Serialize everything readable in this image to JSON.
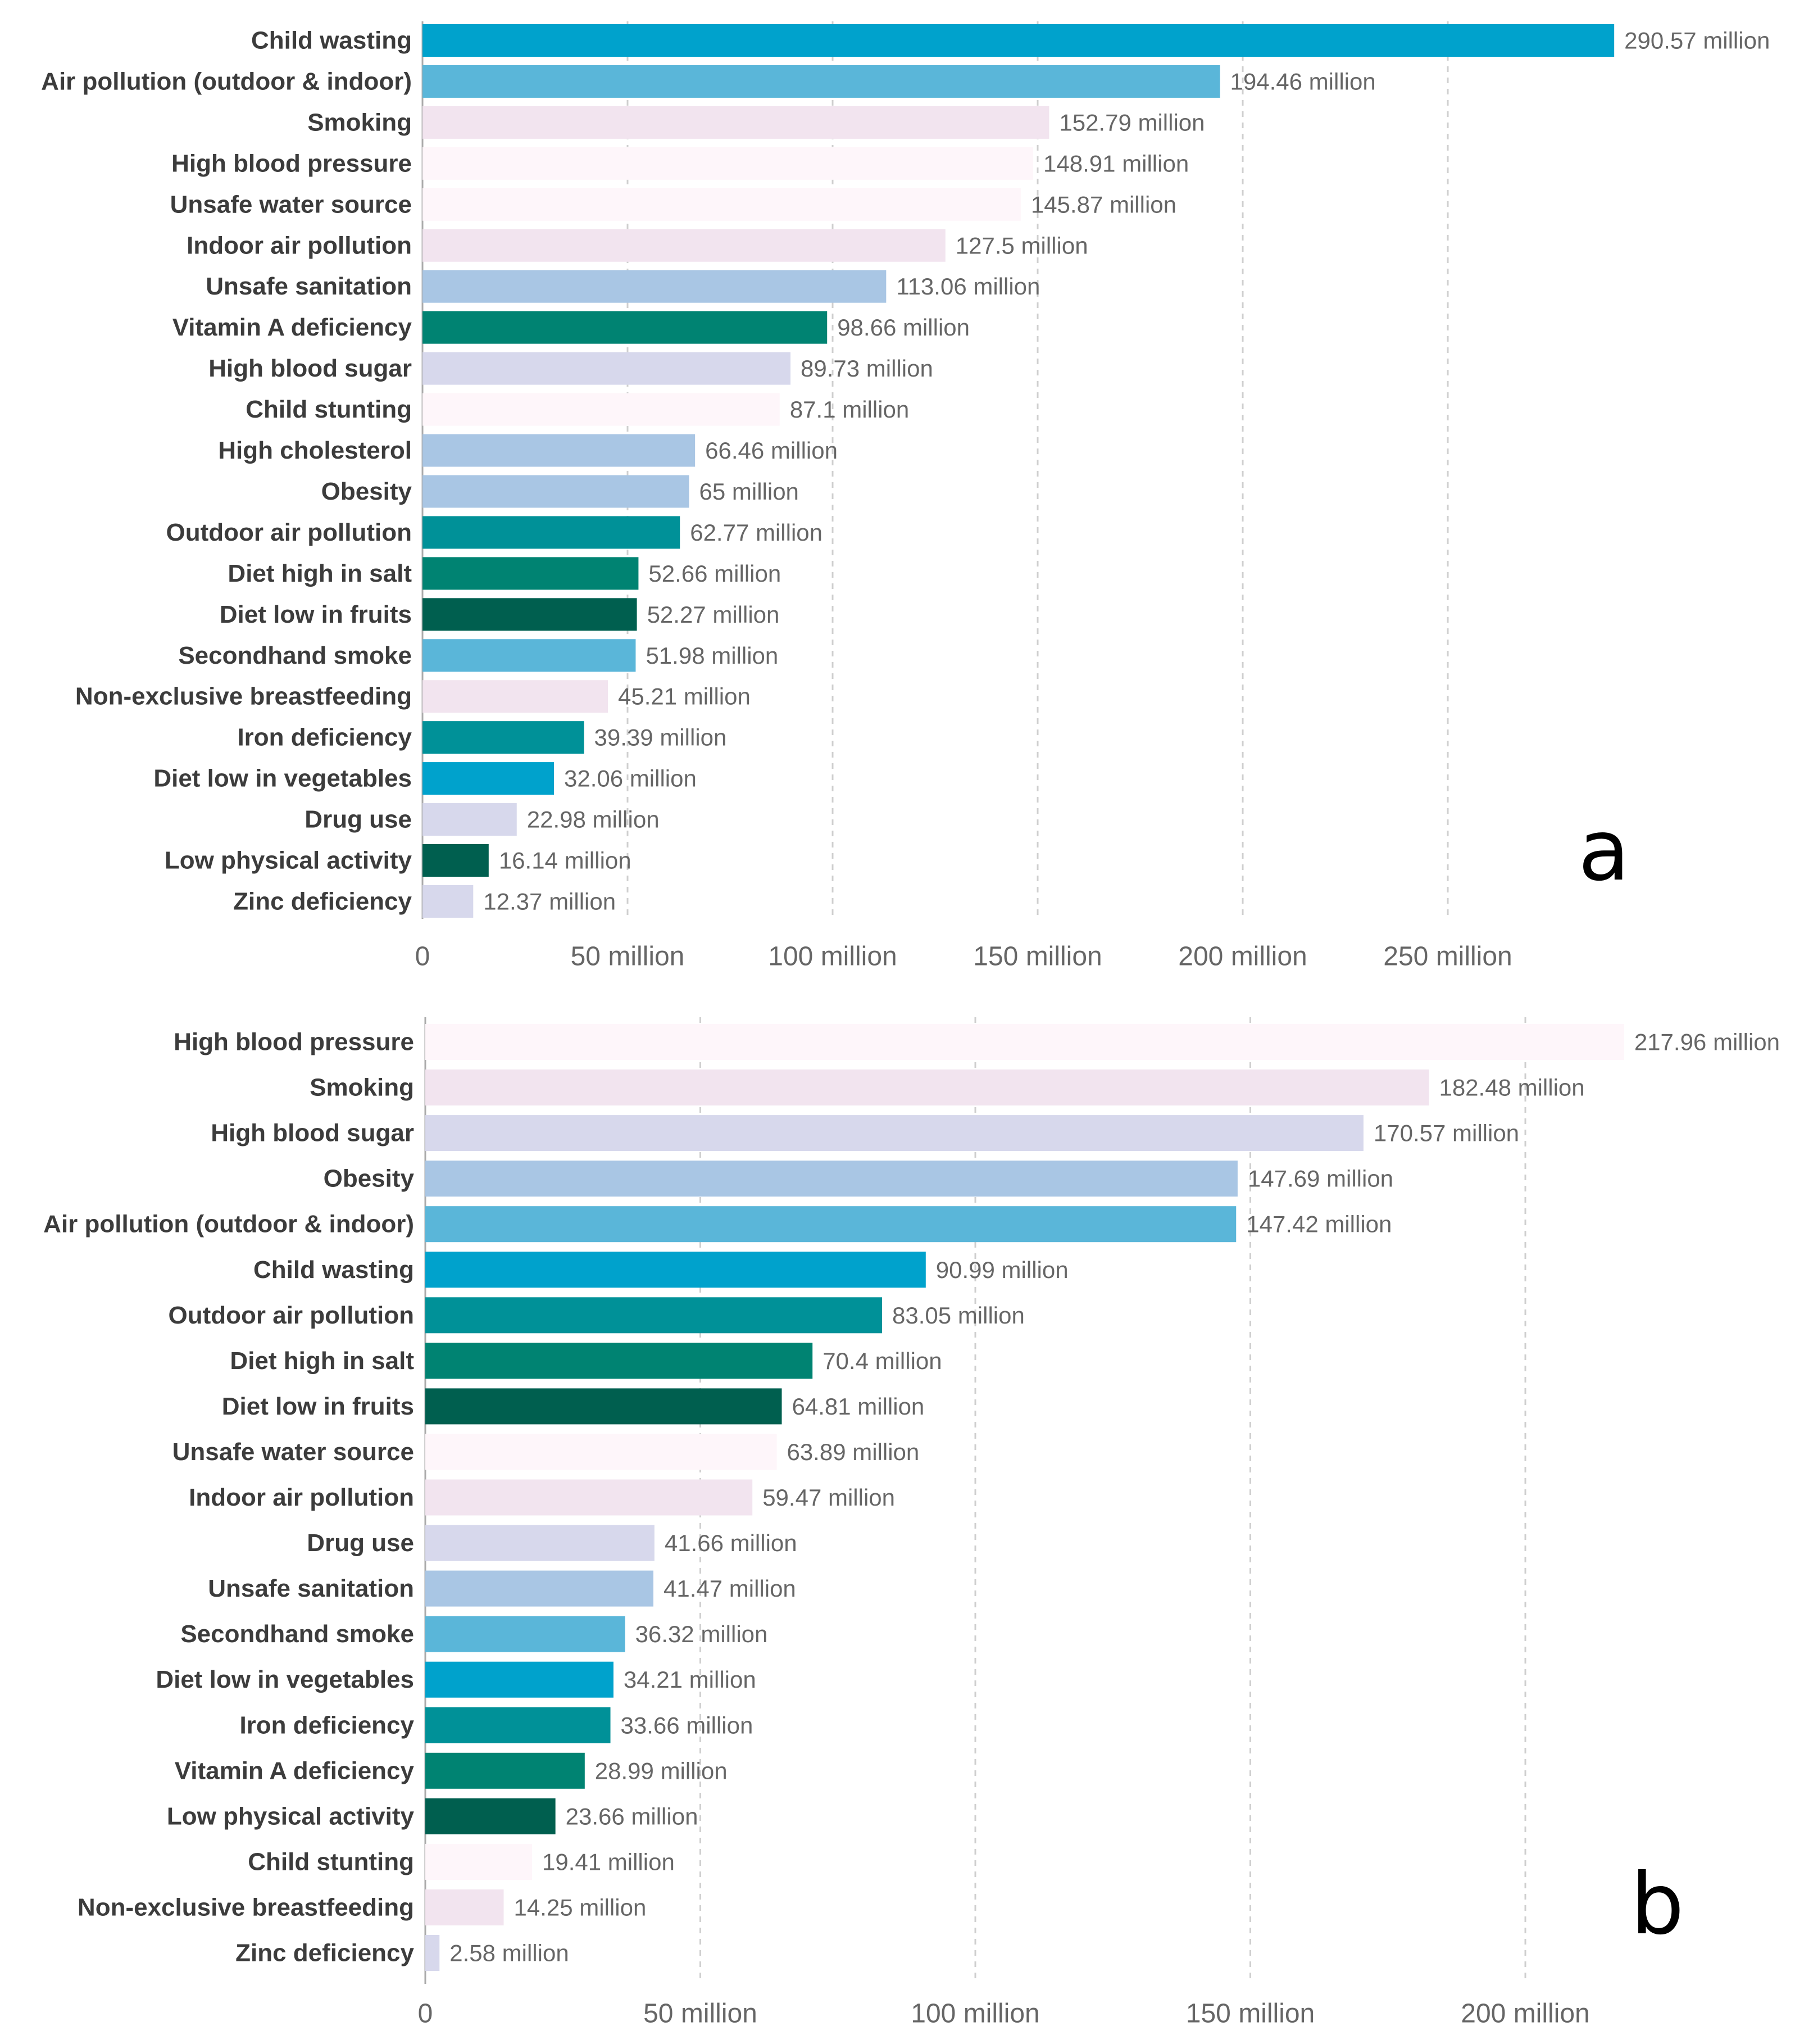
{
  "chart_data": [
    {
      "type": "bar",
      "orientation": "horizontal",
      "panel_label": "a",
      "unit_suffix": " million",
      "xlim": [
        0,
        290.57
      ],
      "x_ticks": [
        0,
        50,
        100,
        150,
        200,
        250
      ],
      "x_tick_labels": [
        "0",
        "50 million",
        "100 million",
        "150 million",
        "200 million",
        "250 million"
      ],
      "grid": true,
      "categories": [
        "Child wasting",
        "Air pollution (outdoor & indoor)",
        "Smoking",
        "High blood pressure",
        "Unsafe water source",
        "Indoor air pollution",
        "Unsafe sanitation",
        "Vitamin A deficiency",
        "High blood sugar",
        "Child stunting",
        "High cholesterol",
        "Obesity",
        "Outdoor air pollution",
        "Diet high in salt",
        "Diet low in fruits",
        "Secondhand smoke",
        "Non-exclusive breastfeeding",
        "Iron deficiency",
        "Diet low in vegetables",
        "Drug use",
        "Low physical activity",
        "Zinc deficiency"
      ],
      "values": [
        290.57,
        194.46,
        152.79,
        148.91,
        145.87,
        127.5,
        113.06,
        98.66,
        89.73,
        87.1,
        66.46,
        65,
        62.77,
        52.66,
        52.27,
        51.98,
        45.21,
        39.39,
        32.06,
        22.98,
        16.14,
        12.37
      ],
      "value_labels": [
        "290.57 million",
        "194.46 million",
        "152.79 million",
        "148.91 million",
        "145.87 million",
        "127.5 million",
        "113.06 million",
        "98.66 million",
        "89.73 million",
        "87.1 million",
        "66.46 million",
        "65 million",
        "62.77 million",
        "52.66 million",
        "52.27 million",
        "51.98 million",
        "45.21 million",
        "39.39 million",
        "32.06 million",
        "22.98 million",
        "16.14 million",
        "12.37 million"
      ],
      "colors": [
        "#00a2cc",
        "#5ab6d9",
        "#f2e4ef",
        "#fef6fa",
        "#fef6fa",
        "#f2e4ef",
        "#a9c6e4",
        "#008372",
        "#d7d8ec",
        "#fef6fa",
        "#a9c6e4",
        "#a9c6e4",
        "#009198",
        "#008372",
        "#005f4f",
        "#5ab6d9",
        "#f2e4ef",
        "#009198",
        "#00a2cc",
        "#d7d8ec",
        "#005f4f",
        "#d7d8ec"
      ]
    },
    {
      "type": "bar",
      "orientation": "horizontal",
      "panel_label": "b",
      "unit_suffix": " million",
      "xlim": [
        0,
        217.96
      ],
      "x_ticks": [
        0,
        50,
        100,
        150,
        200
      ],
      "x_tick_labels": [
        "0",
        "50 million",
        "100 million",
        "150 million",
        "200 million"
      ],
      "grid": true,
      "categories": [
        "High blood pressure",
        "Smoking",
        "High blood sugar",
        "Obesity",
        "Air pollution (outdoor & indoor)",
        "Child wasting",
        "Outdoor air pollution",
        "Diet high in salt",
        "Diet low in fruits",
        "Unsafe water source",
        "Indoor air pollution",
        "Drug use",
        "Unsafe sanitation",
        "Secondhand smoke",
        "Diet low in vegetables",
        "Iron deficiency",
        "Vitamin A deficiency",
        "Low physical activity",
        "Child stunting",
        "Non-exclusive breastfeeding",
        "Zinc deficiency"
      ],
      "values": [
        217.96,
        182.48,
        170.57,
        147.69,
        147.42,
        90.99,
        83.05,
        70.4,
        64.81,
        63.89,
        59.47,
        41.66,
        41.47,
        36.32,
        34.21,
        33.66,
        28.99,
        23.66,
        19.41,
        14.25,
        2.58
      ],
      "value_labels": [
        "217.96 million",
        "182.48 million",
        "170.57 million",
        "147.69 million",
        "147.42 million",
        "90.99 million",
        "83.05 million",
        "70.4 million",
        "64.81 million",
        "63.89 million",
        "59.47 million",
        "41.66 million",
        "41.47 million",
        "36.32 million",
        "34.21 million",
        "33.66 million",
        "28.99 million",
        "23.66 million",
        "19.41 million",
        "14.25 million",
        "2.58 million"
      ],
      "colors": [
        "#fef6fa",
        "#f2e4ef",
        "#d7d8ec",
        "#a9c6e4",
        "#5ab6d9",
        "#00a2cc",
        "#009198",
        "#008372",
        "#005f4f",
        "#fef6fa",
        "#f2e4ef",
        "#d7d8ec",
        "#a9c6e4",
        "#5ab6d9",
        "#00a2cc",
        "#009198",
        "#008372",
        "#005f4f",
        "#fef6fa",
        "#f2e4ef",
        "#d7d8ec"
      ]
    }
  ]
}
